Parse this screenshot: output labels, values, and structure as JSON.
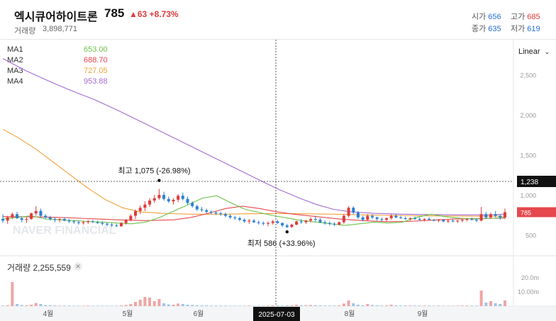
{
  "header": {
    "stock_name": "엑시큐어하이트론",
    "price": "785",
    "change": "▲63 +8.73%",
    "volume_label": "거래량",
    "volume_value": "3,898,771",
    "ohlc": {
      "open_label": "시가",
      "open": "656",
      "high_label": "고가",
      "high": "685",
      "close_label": "종가",
      "close": "635",
      "low_label": "저가",
      "low": "619"
    }
  },
  "legend": [
    {
      "name": "MA1",
      "value": "653.00",
      "color": "#6cc24a"
    },
    {
      "name": "MA2",
      "value": "688.70",
      "color": "#e5484d"
    },
    {
      "name": "MA3",
      "value": "727.05",
      "color": "#f0a23a"
    },
    {
      "name": "MA4",
      "value": "953.88",
      "color": "#a26ad1"
    }
  ],
  "scale_label": "Linear",
  "volume_panel": {
    "title": "거래량 2,255,559",
    "close_icon": "close-icon"
  },
  "crosshair": {
    "date": "2025-07-03",
    "price": "1,238"
  },
  "last_price_tag": "785",
  "watermark": "NAVER FINANCIAL",
  "chart_data": {
    "type": "candlestick",
    "x_axis_labels": [
      "4월",
      "5월",
      "6월",
      "7월",
      "8월",
      "9월"
    ],
    "y_axis_labels": [
      "2,500",
      "2,000",
      "1,500",
      "1,000",
      "500"
    ],
    "y_ticks": [
      2500,
      2000,
      1500,
      1000,
      500
    ],
    "ylim": [
      250,
      2900
    ],
    "volume_axis_labels": [
      "20.0m",
      "10.00m"
    ],
    "annotations": [
      {
        "text": "최고 1,075 (-26.98%)",
        "value": 1075
      },
      {
        "text": "최저 586 (+33.96%)",
        "value": 586
      }
    ],
    "up_color": "#e03b3b",
    "down_color": "#2a7fd4",
    "candles": [
      [
        700,
        760,
        650,
        680
      ],
      [
        680,
        740,
        640,
        720
      ],
      [
        720,
        780,
        700,
        760
      ],
      [
        760,
        790,
        700,
        710
      ],
      [
        710,
        730,
        660,
        690
      ],
      [
        690,
        720,
        650,
        700
      ],
      [
        700,
        780,
        690,
        770
      ],
      [
        770,
        860,
        740,
        800
      ],
      [
        800,
        830,
        720,
        740
      ],
      [
        740,
        760,
        700,
        720
      ],
      [
        720,
        740,
        680,
        700
      ],
      [
        700,
        720,
        660,
        690
      ],
      [
        690,
        710,
        660,
        700
      ],
      [
        700,
        720,
        670,
        680
      ],
      [
        680,
        700,
        650,
        670
      ],
      [
        670,
        690,
        640,
        660
      ],
      [
        660,
        680,
        630,
        650
      ],
      [
        650,
        680,
        630,
        660
      ],
      [
        660,
        690,
        640,
        670
      ],
      [
        670,
        690,
        650,
        660
      ],
      [
        660,
        680,
        640,
        650
      ],
      [
        650,
        670,
        620,
        640
      ],
      [
        640,
        660,
        610,
        630
      ],
      [
        630,
        650,
        600,
        620
      ],
      [
        620,
        640,
        600,
        610
      ],
      [
        610,
        660,
        600,
        650
      ],
      [
        650,
        700,
        630,
        690
      ],
      [
        690,
        760,
        670,
        740
      ],
      [
        740,
        820,
        700,
        800
      ],
      [
        800,
        870,
        760,
        840
      ],
      [
        840,
        920,
        800,
        880
      ],
      [
        880,
        960,
        850,
        930
      ],
      [
        930,
        1000,
        900,
        960
      ],
      [
        960,
        1075,
        940,
        1000
      ],
      [
        1000,
        1040,
        930,
        950
      ],
      [
        950,
        980,
        900,
        920
      ],
      [
        920,
        960,
        880,
        940
      ],
      [
        940,
        1010,
        910,
        990
      ],
      [
        990,
        1030,
        930,
        950
      ],
      [
        950,
        980,
        880,
        900
      ],
      [
        900,
        920,
        840,
        860
      ],
      [
        860,
        880,
        800,
        820
      ],
      [
        820,
        850,
        790,
        810
      ],
      [
        810,
        830,
        770,
        790
      ],
      [
        790,
        810,
        760,
        780
      ],
      [
        780,
        800,
        750,
        770
      ],
      [
        770,
        790,
        740,
        760
      ],
      [
        760,
        780,
        720,
        740
      ],
      [
        740,
        760,
        700,
        720
      ],
      [
        720,
        740,
        690,
        710
      ],
      [
        710,
        730,
        670,
        690
      ],
      [
        690,
        710,
        650,
        670
      ],
      [
        670,
        700,
        640,
        680
      ],
      [
        680,
        700,
        650,
        660
      ],
      [
        660,
        680,
        630,
        650
      ],
      [
        650,
        670,
        620,
        640
      ],
      [
        640,
        670,
        610,
        650
      ],
      [
        650,
        690,
        630,
        670
      ],
      [
        670,
        690,
        640,
        650
      ],
      [
        650,
        660,
        600,
        620
      ],
      [
        620,
        640,
        586,
        600
      ],
      [
        600,
        640,
        590,
        630
      ],
      [
        630,
        680,
        620,
        670
      ],
      [
        670,
        700,
        640,
        660
      ],
      [
        660,
        690,
        640,
        680
      ],
      [
        680,
        720,
        660,
        700
      ],
      [
        700,
        740,
        670,
        690
      ],
      [
        690,
        710,
        650,
        660
      ],
      [
        660,
        680,
        630,
        650
      ],
      [
        650,
        670,
        620,
        640
      ],
      [
        640,
        660,
        610,
        630
      ],
      [
        630,
        670,
        620,
        660
      ],
      [
        660,
        760,
        640,
        740
      ],
      [
        740,
        860,
        720,
        840
      ],
      [
        840,
        860,
        760,
        780
      ],
      [
        780,
        800,
        700,
        720
      ],
      [
        720,
        740,
        670,
        690
      ],
      [
        690,
        760,
        680,
        740
      ],
      [
        740,
        760,
        700,
        720
      ],
      [
        720,
        730,
        680,
        700
      ],
      [
        700,
        720,
        670,
        690
      ],
      [
        690,
        720,
        670,
        710
      ],
      [
        710,
        760,
        690,
        740
      ],
      [
        740,
        760,
        710,
        720
      ],
      [
        720,
        740,
        700,
        710
      ],
      [
        710,
        730,
        690,
        700
      ],
      [
        700,
        720,
        680,
        710
      ],
      [
        710,
        730,
        690,
        700
      ],
      [
        700,
        720,
        680,
        690
      ],
      [
        690,
        710,
        670,
        700
      ],
      [
        700,
        720,
        680,
        690
      ],
      [
        690,
        700,
        670,
        680
      ],
      [
        680,
        700,
        660,
        690
      ],
      [
        690,
        700,
        660,
        670
      ],
      [
        670,
        690,
        650,
        680
      ],
      [
        680,
        700,
        660,
        670
      ],
      [
        670,
        690,
        650,
        680
      ],
      [
        680,
        700,
        660,
        690
      ],
      [
        690,
        710,
        670,
        700
      ],
      [
        700,
        720,
        680,
        690
      ],
      [
        690,
        710,
        660,
        680
      ],
      [
        680,
        850,
        670,
        760
      ],
      [
        760,
        790,
        700,
        720
      ],
      [
        720,
        780,
        700,
        760
      ],
      [
        760,
        800,
        720,
        740
      ],
      [
        740,
        760,
        690,
        720
      ],
      [
        720,
        830,
        700,
        785
      ]
    ],
    "volumes": [
      0.4,
      0.6,
      17.0,
      1.5,
      0.8,
      0.6,
      1.0,
      2.2,
      1.5,
      0.8,
      0.6,
      0.5,
      0.4,
      0.4,
      0.4,
      0.3,
      0.3,
      0.3,
      0.4,
      0.3,
      0.3,
      0.3,
      0.3,
      0.3,
      0.3,
      0.5,
      0.8,
      1.5,
      3.0,
      4.5,
      6.5,
      6.0,
      3.5,
      5.0,
      2.0,
      1.2,
      1.0,
      1.8,
      1.5,
      1.0,
      0.8,
      0.6,
      0.5,
      0.5,
      0.4,
      0.4,
      0.4,
      0.4,
      0.3,
      0.3,
      0.3,
      0.3,
      0.4,
      0.3,
      0.3,
      0.3,
      0.4,
      0.6,
      0.5,
      0.4,
      0.6,
      0.6,
      1.0,
      0.6,
      0.6,
      0.8,
      0.7,
      0.5,
      0.4,
      0.4,
      0.4,
      0.5,
      1.8,
      4.0,
      2.0,
      1.0,
      0.7,
      1.5,
      0.8,
      0.5,
      0.4,
      0.5,
      1.0,
      0.6,
      0.4,
      0.4,
      0.4,
      0.4,
      0.4,
      0.4,
      0.4,
      0.3,
      0.4,
      0.3,
      0.3,
      0.3,
      0.3,
      0.4,
      0.4,
      0.4,
      0.4,
      11.0,
      2.5,
      3.5,
      2.0,
      1.5,
      4.0
    ],
    "ma4": [
      [
        0,
        2700
      ],
      [
        8,
        2550
      ],
      [
        16,
        2420
      ],
      [
        24,
        2300
      ],
      [
        32,
        2190
      ],
      [
        40,
        2060
      ],
      [
        48,
        1920
      ],
      [
        56,
        1780
      ],
      [
        64,
        1640
      ],
      [
        72,
        1500
      ],
      [
        80,
        1360
      ],
      [
        88,
        1220
      ],
      [
        96,
        1080
      ],
      [
        104,
        960
      ],
      [
        110,
        880
      ],
      [
        116,
        820
      ],
      [
        122,
        790
      ],
      [
        130,
        770
      ],
      [
        140,
        760
      ],
      [
        150,
        755
      ],
      [
        160,
        752
      ],
      [
        170,
        752
      ],
      [
        176,
        760
      ]
    ],
    "ma3": [
      [
        0,
        1820
      ],
      [
        6,
        1700
      ],
      [
        12,
        1560
      ],
      [
        18,
        1400
      ],
      [
        24,
        1240
      ],
      [
        30,
        1080
      ],
      [
        36,
        940
      ],
      [
        42,
        840
      ],
      [
        48,
        790
      ],
      [
        56,
        770
      ],
      [
        66,
        760
      ],
      [
        76,
        760
      ],
      [
        86,
        765
      ],
      [
        96,
        768
      ],
      [
        106,
        765
      ],
      [
        116,
        760
      ],
      [
        126,
        752
      ],
      [
        136,
        745
      ],
      [
        146,
        740
      ],
      [
        156,
        738
      ],
      [
        166,
        735
      ],
      [
        176,
        735
      ]
    ],
    "ma2": [
      [
        0,
        730
      ],
      [
        10,
        728
      ],
      [
        20,
        720
      ],
      [
        30,
        705
      ],
      [
        40,
        690
      ],
      [
        50,
        680
      ],
      [
        60,
        690
      ],
      [
        66,
        720
      ],
      [
        72,
        770
      ],
      [
        78,
        830
      ],
      [
        84,
        860
      ],
      [
        90,
        830
      ],
      [
        96,
        790
      ],
      [
        102,
        760
      ],
      [
        110,
        730
      ],
      [
        118,
        700
      ],
      [
        126,
        680
      ],
      [
        134,
        668
      ],
      [
        142,
        670
      ],
      [
        150,
        685
      ],
      [
        158,
        700
      ],
      [
        166,
        705
      ],
      [
        176,
        712
      ]
    ],
    "ma1": [
      [
        0,
        700
      ],
      [
        5,
        720
      ],
      [
        10,
        740
      ],
      [
        15,
        700
      ],
      [
        20,
        690
      ],
      [
        25,
        680
      ],
      [
        30,
        670
      ],
      [
        35,
        660
      ],
      [
        40,
        650
      ],
      [
        45,
        640
      ],
      [
        50,
        660
      ],
      [
        55,
        720
      ],
      [
        60,
        800
      ],
      [
        65,
        880
      ],
      [
        70,
        960
      ],
      [
        75,
        990
      ],
      [
        80,
        900
      ],
      [
        85,
        820
      ],
      [
        90,
        780
      ],
      [
        95,
        740
      ],
      [
        100,
        710
      ],
      [
        105,
        680
      ],
      [
        110,
        660
      ],
      [
        115,
        640
      ],
      [
        120,
        620
      ],
      [
        125,
        640
      ],
      [
        130,
        660
      ],
      [
        135,
        650
      ],
      [
        140,
        660
      ],
      [
        145,
        720
      ],
      [
        150,
        760
      ],
      [
        155,
        730
      ],
      [
        160,
        710
      ],
      [
        165,
        700
      ],
      [
        170,
        705
      ],
      [
        176,
        720
      ]
    ]
  }
}
